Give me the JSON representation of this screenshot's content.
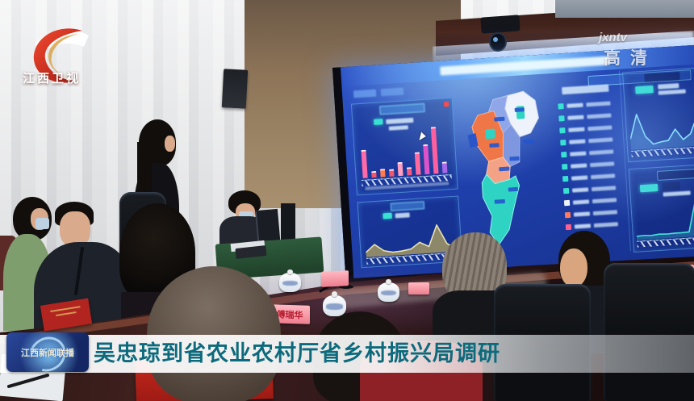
{
  "broadcast": {
    "channel_name": "江西卫视",
    "watermark": "jxntv",
    "hd_label": "高清",
    "program_badge": "江西新闻联播",
    "caption": "吴忠琼到省农业农村厅省乡村振兴局调研"
  },
  "table": {
    "name_plates": [
      {
        "text": ""
      },
      {
        "text": ""
      },
      {
        "text": "傅瑞华"
      },
      {
        "text": ""
      },
      {
        "text": ""
      }
    ]
  },
  "dashboard": {
    "accent_color": "#37e2d2",
    "background_color": "#1f40ad",
    "chart_data": [
      {
        "type": "bar",
        "panel": "top-left",
        "values": [
          52,
          9,
          12,
          11,
          24,
          12,
          40,
          55,
          88,
          18
        ],
        "colors": [
          "#ff6aa8",
          "#f0566e",
          "#ff7a4e",
          "#f0566e",
          "#ff9ec0",
          "#ef5a84",
          "#ff6a9e",
          "#e052c8",
          "#ff5f9e",
          "#a868e8"
        ],
        "title": "",
        "xlabel": "",
        "ylabel": "",
        "tick_labels_legible": false
      },
      {
        "type": "area",
        "panel": "bottom-left",
        "values": [
          14,
          36,
          16,
          10,
          12,
          16,
          34,
          20,
          82,
          26,
          8
        ],
        "stroke": "#e8e2b0",
        "fill": "rgba(183,165,94,0.75)"
      },
      {
        "type": "line",
        "panel": "top-right",
        "values": [
          24,
          78,
          28,
          10,
          14,
          16,
          40,
          16,
          28,
          66
        ],
        "stroke": "#8deaff",
        "fill": "rgba(120,225,255,0.22)"
      },
      {
        "type": "area",
        "panel": "bottom-right",
        "values": [
          10,
          11,
          10,
          12,
          11,
          12,
          12,
          13,
          88,
          80
        ],
        "stroke": "#49e2d8",
        "fill": "rgba(70,220,215,0.28)"
      }
    ],
    "stats_list": {
      "rows": [
        {
          "icon": "#37e2d2"
        },
        {
          "icon": "#37e2d2"
        },
        {
          "icon": "#37e2d2"
        },
        {
          "icon": "#37e2d2"
        },
        {
          "icon": "#37e2d2"
        },
        {
          "icon": "#37e2d2"
        },
        {
          "icon": "#37e2d2"
        },
        {
          "icon": "#37e2d2"
        },
        {
          "icon": "#eef3fb"
        },
        {
          "icon": "#ff7a5c"
        },
        {
          "icon": "#ff5f8e"
        }
      ]
    },
    "map": {
      "region_name": "Jiangxi province choropleth",
      "colors": {
        "ne": "#eef3fb",
        "n": "#8fa7e8",
        "e": "#7e97de",
        "w": "#ef7747",
        "c": "#f4a285",
        "s": "#2ed3c3",
        "patch": "#2ed3c3",
        "chip": "#2a55c8"
      }
    }
  }
}
